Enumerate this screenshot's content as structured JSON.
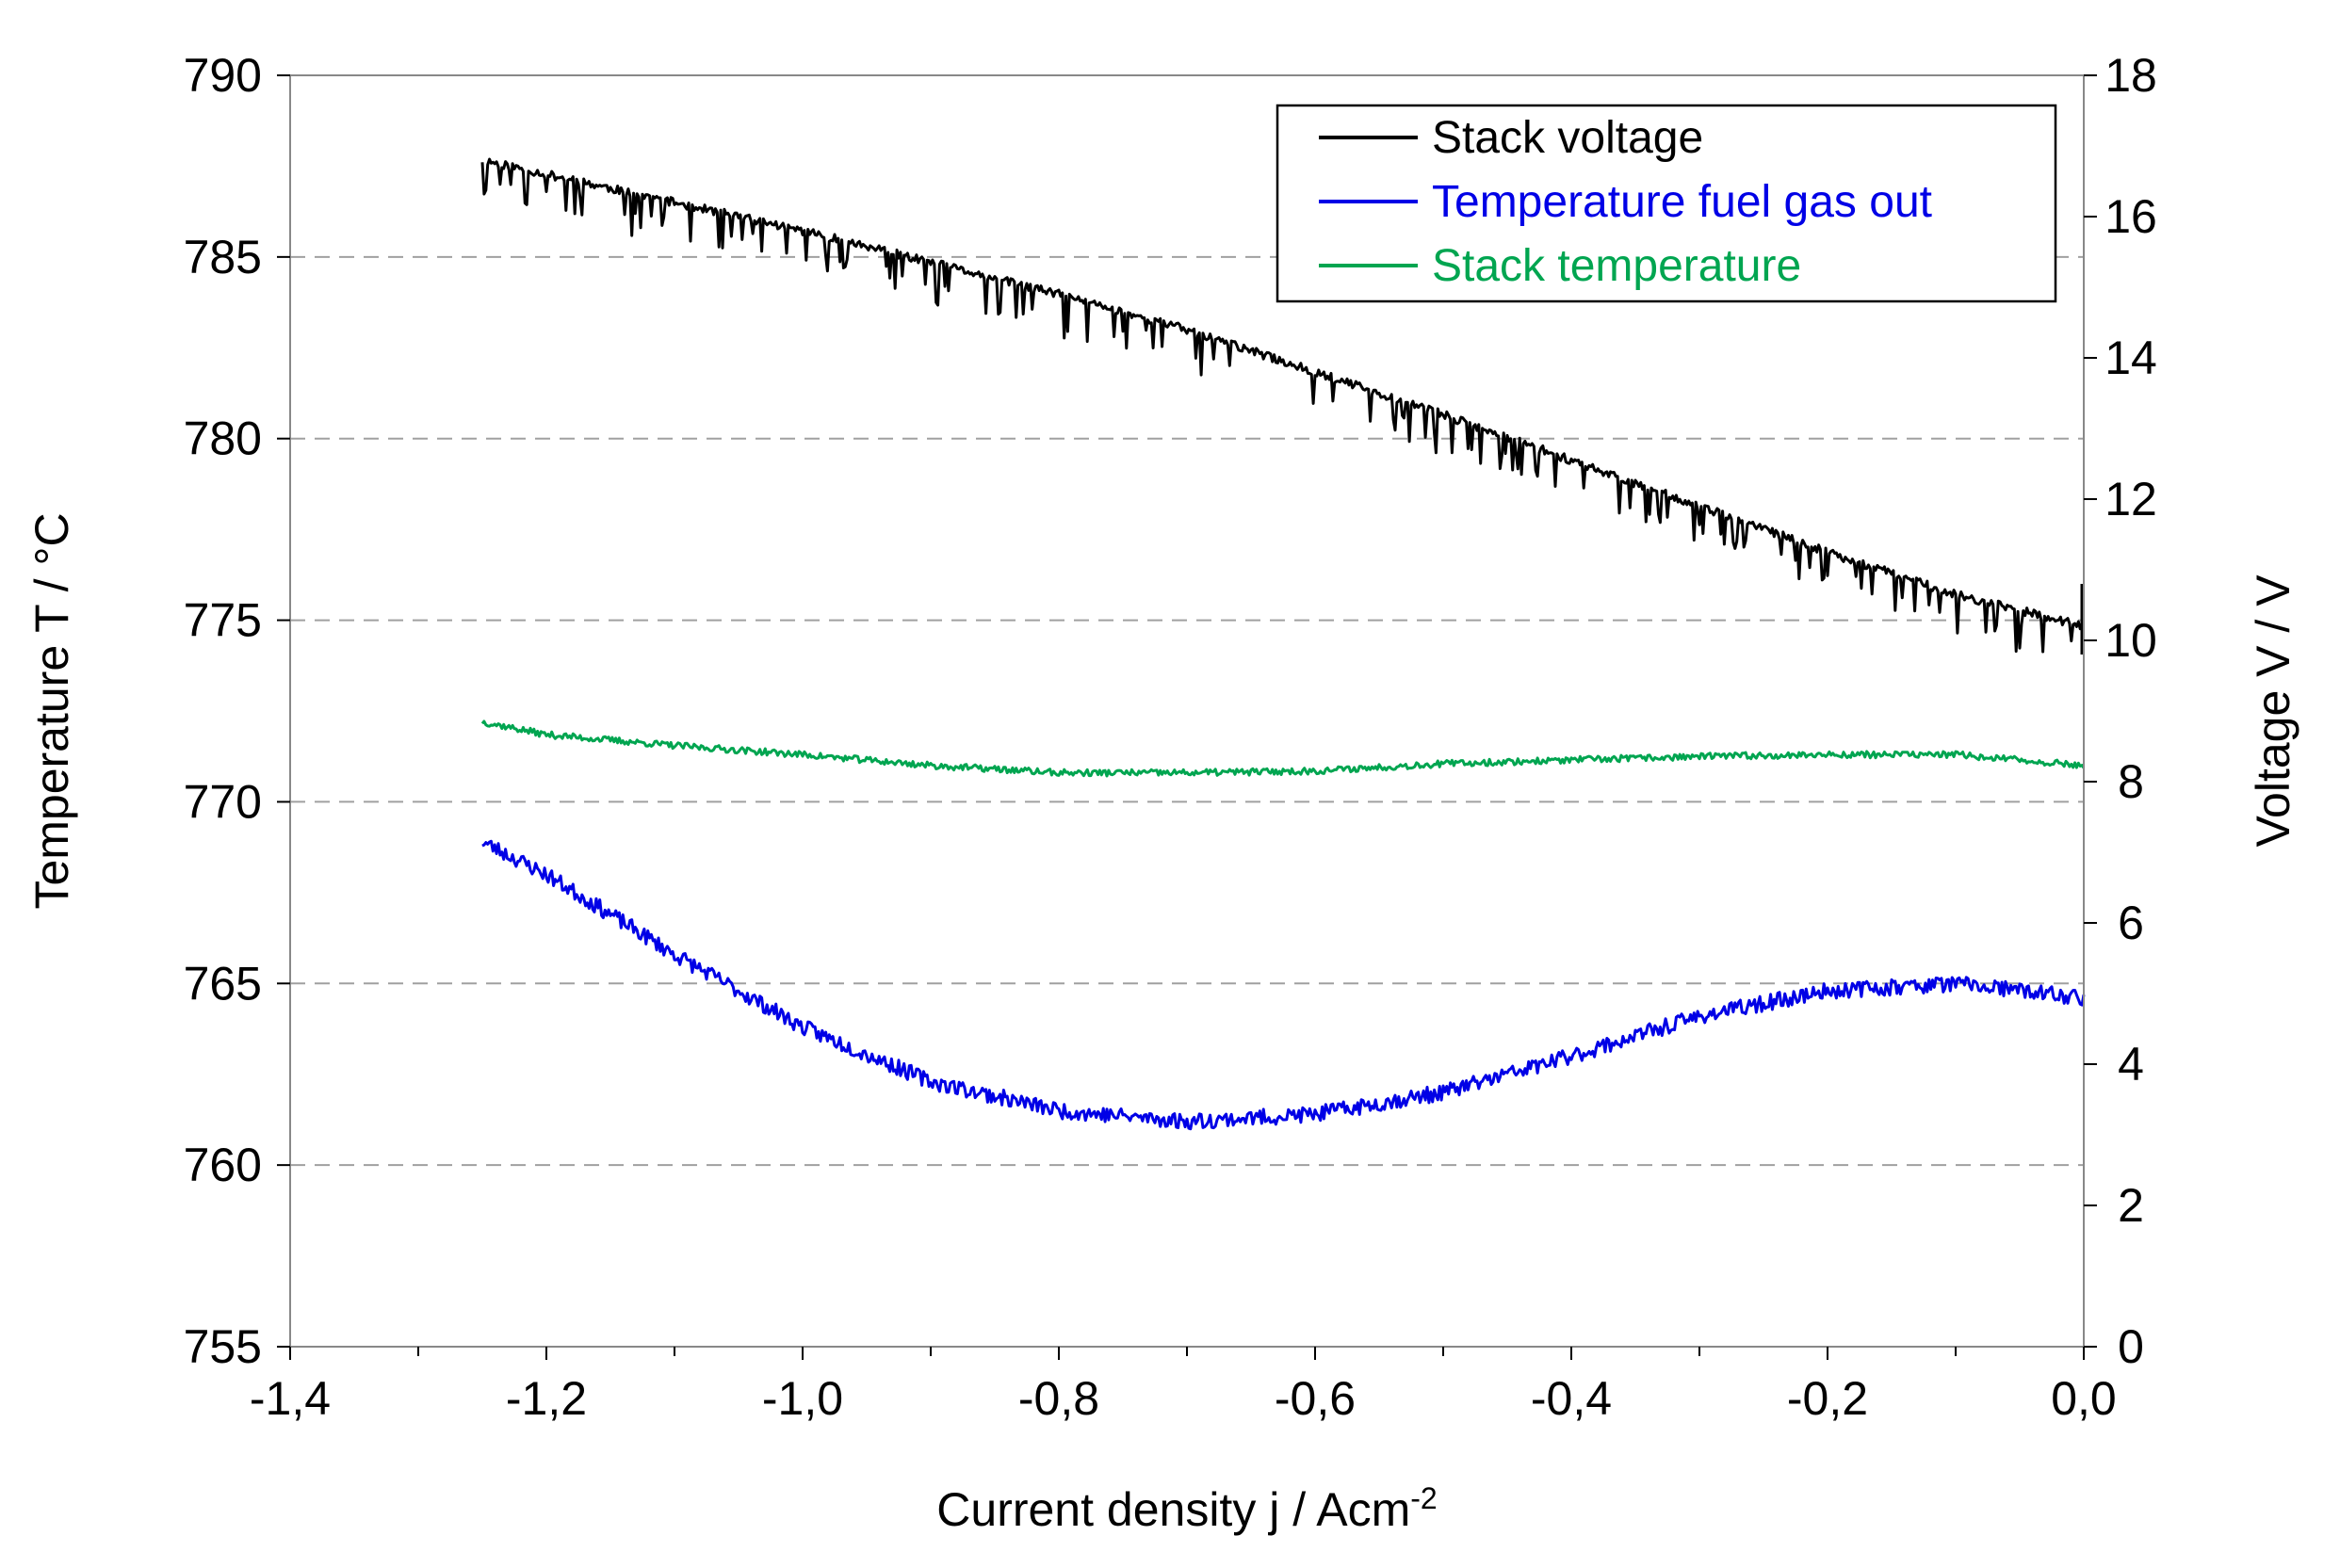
{
  "chart_data": {
    "type": "line",
    "title": "",
    "xlabel": "Current density j / Acm⁻²",
    "ylabel_left": "Temperature T / °C",
    "ylabel_right": "Voltage V / V",
    "xlim": [
      -1.4,
      0.0
    ],
    "ylim_left": [
      755,
      790
    ],
    "ylim_right": [
      0,
      18
    ],
    "x_ticks": [
      "-1,4",
      "-1,2",
      "-1,0",
      "-0,8",
      "-0,6",
      "-0,4",
      "-0,2",
      "0,0"
    ],
    "x_tick_values": [
      -1.4,
      -1.2,
      -1.0,
      -0.8,
      -0.6,
      -0.4,
      -0.2,
      0.0
    ],
    "y_left_ticks": [
      "755",
      "760",
      "765",
      "770",
      "775",
      "780",
      "785",
      "790"
    ],
    "y_left_tick_values": [
      755,
      760,
      765,
      770,
      775,
      780,
      785,
      790
    ],
    "y_right_ticks": [
      "0",
      "2",
      "4",
      "6",
      "8",
      "10",
      "12",
      "14",
      "16",
      "18"
    ],
    "y_right_tick_values": [
      0,
      2,
      4,
      6,
      8,
      10,
      12,
      14,
      16,
      18
    ],
    "grid": "horizontal dashed",
    "legend_position": "top-right",
    "series": [
      {
        "name": "Stack voltage",
        "axis": "right",
        "color": "#000000",
        "x": [
          -1.25,
          -1.2,
          -1.1,
          -1.0,
          -0.9,
          -0.8,
          -0.7,
          -0.6,
          -0.5,
          -0.4,
          -0.3,
          -0.2,
          -0.1,
          0.0
        ],
        "values": [
          16.8,
          16.6,
          16.2,
          15.8,
          15.35,
          14.9,
          14.4,
          13.8,
          13.2,
          12.55,
          11.9,
          11.25,
          10.65,
          10.2
        ]
      },
      {
        "name": "Temperature fuel gas out",
        "axis": "left",
        "color": "#0000e6",
        "x": [
          -1.25,
          -1.2,
          -1.1,
          -1.0,
          -0.9,
          -0.8,
          -0.7,
          -0.6,
          -0.5,
          -0.4,
          -0.3,
          -0.2,
          -0.1,
          0.0
        ],
        "values": [
          768.9,
          768.0,
          765.8,
          763.8,
          762.3,
          761.5,
          761.2,
          761.4,
          762.0,
          763.0,
          764.1,
          764.8,
          765.0,
          764.6
        ]
      },
      {
        "name": "Stack temperature",
        "axis": "left",
        "color": "#00a550",
        "x": [
          -1.25,
          -1.2,
          -1.1,
          -1.0,
          -0.9,
          -0.8,
          -0.7,
          -0.6,
          -0.5,
          -0.4,
          -0.3,
          -0.2,
          -0.1,
          0.0
        ],
        "values": [
          772.2,
          771.85,
          771.55,
          771.3,
          771.0,
          770.8,
          770.8,
          770.85,
          771.05,
          771.15,
          771.25,
          771.3,
          771.3,
          771.0
        ]
      }
    ]
  }
}
